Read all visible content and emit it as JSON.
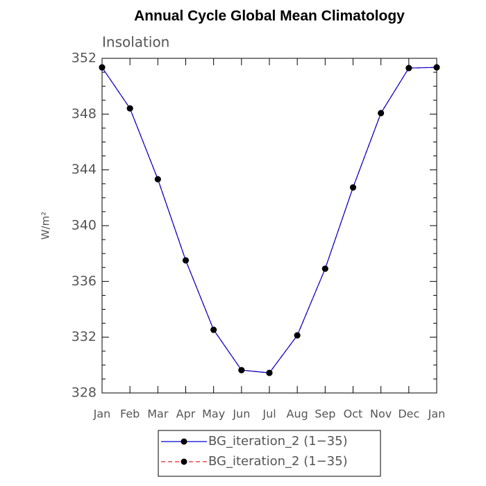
{
  "chart_data": {
    "type": "line",
    "title": "Annual Cycle Global Mean Climatology",
    "subtitle": "Insolation",
    "ylabel": "W/m²",
    "categories": [
      "Jan",
      "Feb",
      "Mar",
      "Apr",
      "May",
      "Jun",
      "Jul",
      "Aug",
      "Sep",
      "Oct",
      "Nov",
      "Dec",
      "Jan"
    ],
    "series": [
      {
        "name": "BG_iteration_2 (1−35)",
        "color": "#0000cc",
        "dash": "solid",
        "values": [
          351.35,
          348.41,
          343.33,
          337.51,
          332.53,
          329.64,
          329.44,
          332.13,
          336.91,
          342.74,
          348.07,
          351.3,
          351.35
        ]
      },
      {
        "name": "BG_iteration_2 (1−35)",
        "color": "#e8202a",
        "dash": "dashed",
        "values": [
          351.35,
          348.41,
          343.33,
          337.51,
          332.53,
          329.64,
          329.44,
          332.13,
          336.91,
          342.74,
          348.07,
          351.3,
          351.35
        ]
      }
    ],
    "ylim": [
      328,
      352
    ],
    "yticks": [
      328,
      332,
      336,
      340,
      344,
      348,
      352
    ],
    "yminorticks": [
      329,
      330,
      331,
      333,
      334,
      335,
      337,
      338,
      339,
      341,
      342,
      343,
      345,
      346,
      347,
      349,
      350,
      351
    ],
    "grid": false
  }
}
